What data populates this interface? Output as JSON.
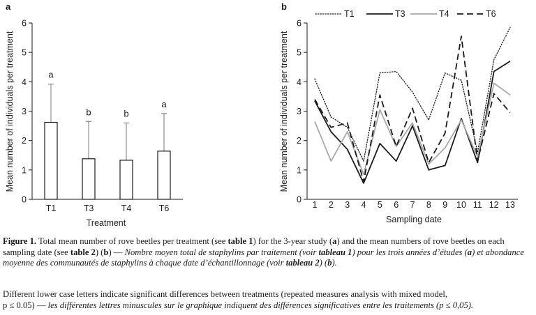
{
  "chart_data": [
    {
      "type": "bar",
      "panel_label": "a",
      "categories": [
        "T1",
        "T3",
        "T4",
        "T6"
      ],
      "values": [
        2.62,
        1.38,
        1.33,
        1.64
      ],
      "error_upper": [
        3.92,
        2.65,
        2.6,
        2.92
      ],
      "significance_letters": [
        "a",
        "b",
        "b",
        "a"
      ],
      "xlabel": "Treatment",
      "ylabel": "Mean number of individuals per treatment",
      "ylim": [
        0,
        6
      ],
      "yticks": [
        "0",
        "1",
        "2",
        "3",
        "4",
        "5",
        "6"
      ],
      "grid": false
    },
    {
      "type": "line",
      "panel_label": "b",
      "x": [
        1,
        2,
        3,
        4,
        5,
        6,
        7,
        8,
        9,
        10,
        11,
        12,
        13
      ],
      "xlabel": "Sampling date",
      "ylabel": "Mean number of individuals per treatment",
      "ylim": [
        0,
        6
      ],
      "yticks": [
        "0",
        "1",
        "2",
        "3",
        "4",
        "5",
        "6"
      ],
      "legend_position": "top",
      "grid": false,
      "series": [
        {
          "name": "T1",
          "style": "dotted",
          "color": "#1a1a1a",
          "values": [
            4.1,
            2.8,
            2.45,
            1.3,
            4.3,
            4.35,
            3.65,
            2.7,
            4.3,
            4.05,
            1.6,
            4.75,
            5.85
          ]
        },
        {
          "name": "T3",
          "style": "solid",
          "color": "#1a1a1a",
          "values": [
            3.35,
            2.3,
            1.7,
            0.55,
            1.9,
            1.3,
            2.5,
            1.0,
            1.15,
            2.75,
            1.25,
            4.35,
            4.7
          ]
        },
        {
          "name": "T4",
          "style": "solid-gray",
          "color": "#a8a8a8",
          "values": [
            2.65,
            1.3,
            2.3,
            0.85,
            3.05,
            1.8,
            2.6,
            1.2,
            1.75,
            2.7,
            1.45,
            3.95,
            3.55
          ]
        },
        {
          "name": "T6",
          "style": "dashed",
          "color": "#1a1a1a",
          "values": [
            3.4,
            2.45,
            2.6,
            0.6,
            3.55,
            1.8,
            3.1,
            1.25,
            2.25,
            5.55,
            1.3,
            3.6,
            2.95
          ]
        }
      ]
    }
  ],
  "caption": {
    "figure_label": "Figure 1.",
    "en_part1": " Total mean number of rove beetles per treatment (see ",
    "ref1": "table 1",
    "en_part2": ") for the 3-year study (",
    "a1": "a",
    "en_part3": ") and the mean numbers of rove beetles on each sampling date (see ",
    "ref2": "table 2",
    "en_part4": ") (",
    "b1": "b",
    "en_part5": ") — ",
    "fr_part1": "Nombre moyen total de staphylins par traitement (voir ",
    "fr_ref1": "tableau 1",
    "fr_part2": ") pour les trois années d’études (",
    "fr_a": "a",
    "fr_part3": ") et abondance moyenne des communautés de staphylins à chaque date d’échantillonnage (voir ",
    "fr_ref2": "tableau 2",
    "fr_part4": ") (",
    "fr_b": "b",
    "fr_part5": ").",
    "note_line1": "Different lower case letters indicate significant differences between treatments (repeated measures analysis with mixed model,",
    "note_line2_en": "p ≤ 0.05) — ",
    "note_line2_fr": "les différentes lettres minuscules sur le graphique indiquent des différences significatives entre les traitements (p ≤ 0,05)."
  }
}
